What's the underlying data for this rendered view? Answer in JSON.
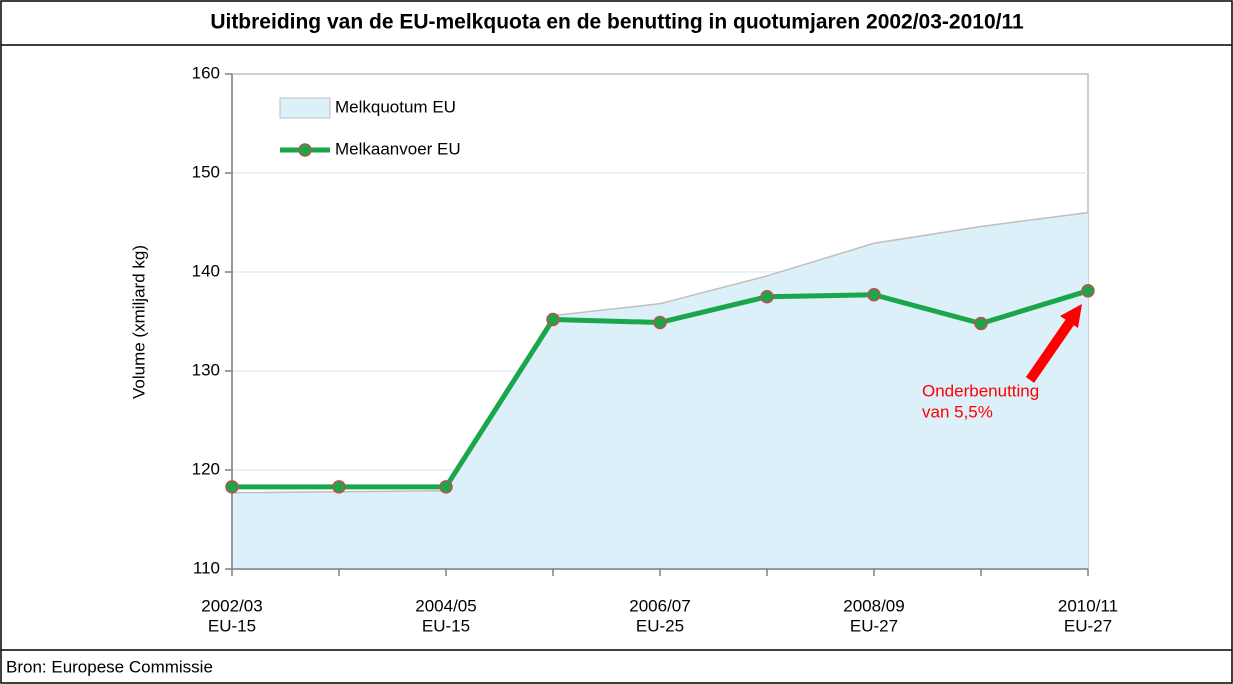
{
  "chart_data": {
    "type": "area-line",
    "title": "Uitbreiding van de EU-melkquota en de benutting in quotumjaren 2002/03-2010/11",
    "y_label": "Volume (xmiljard kg)",
    "source": "Bron: Europese Commissie",
    "categories": [
      "2002/03",
      null,
      "2004/05",
      null,
      "2006/07",
      null,
      "2008/09",
      null,
      "2010/11"
    ],
    "category_groups": [
      "EU-15",
      null,
      "EU-15",
      null,
      "EU-25",
      null,
      "EU-27",
      null,
      "EU-27"
    ],
    "series": [
      {
        "name": "Melkquotum EU",
        "kind": "area",
        "color": "#dcf0fa",
        "values": [
          117.7,
          117.8,
          117.9,
          135.6,
          136.8,
          139.6,
          142.9,
          144.6,
          146.0
        ]
      },
      {
        "name": "Melkaanvoer EU",
        "kind": "line",
        "color": "#1aa64a",
        "values": [
          118.3,
          118.3,
          118.3,
          135.2,
          134.9,
          137.5,
          137.7,
          134.8,
          138.1
        ]
      }
    ],
    "annotation": [
      "Onderbenutting",
      "van 5,5%"
    ],
    "ylim": [
      110,
      160
    ],
    "yticks": [
      110,
      120,
      130,
      140,
      150,
      160
    ],
    "grid": true,
    "legend": "upper left"
  }
}
